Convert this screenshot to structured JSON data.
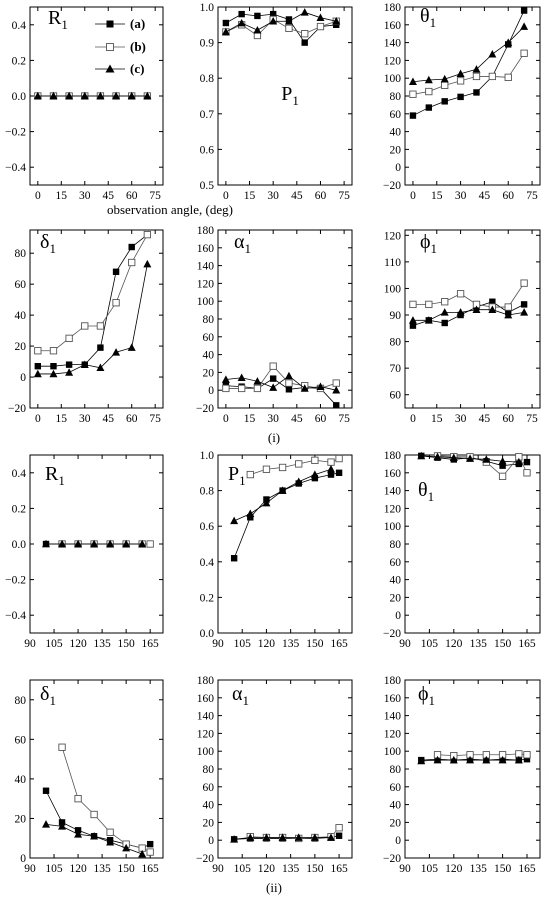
{
  "figure": {
    "xlabel_top": "observation angle, (deg)",
    "caption_i": "(i)",
    "caption_ii": "(ii)",
    "legend": [
      {
        "label": "(a)",
        "marker": "square-filled"
      },
      {
        "label": "(b)",
        "marker": "square-open"
      },
      {
        "label": "(c)",
        "marker": "triangle-filled"
      }
    ]
  },
  "colors": {
    "filled": "#000000",
    "open_fill": "#ffffff",
    "open_stroke": "#555555",
    "line_a": "#000000",
    "line_b": "#555555",
    "line_c": "#000000"
  },
  "chart_data": [
    {
      "type": "line",
      "id": "i-R1",
      "panel_label": {
        "main": "R",
        "sub": "1"
      },
      "xlim": [
        -5,
        80
      ],
      "ylim": [
        -0.5,
        0.5
      ],
      "xticks": [
        0,
        15,
        30,
        45,
        60,
        75
      ],
      "yticks": [
        -0.4,
        -0.2,
        0.0,
        0.2,
        0.4
      ],
      "ytick_labels": [
        "−0.4",
        "−0.2",
        "0.0",
        "0.2",
        "0.4"
      ],
      "x": [
        0,
        10,
        20,
        30,
        40,
        50,
        60,
        70
      ],
      "series": [
        {
          "name": "(a)",
          "values": [
            0,
            0,
            0,
            0,
            0,
            0,
            0,
            0
          ]
        },
        {
          "name": "(b)",
          "values": [
            0,
            0,
            0,
            0,
            0,
            0,
            0,
            0
          ]
        },
        {
          "name": "(c)",
          "values": [
            0,
            0,
            0,
            0,
            0,
            0,
            0,
            0
          ]
        }
      ]
    },
    {
      "type": "line",
      "id": "i-P1",
      "panel_label": {
        "main": "P",
        "sub": "1"
      },
      "xlim": [
        -5,
        80
      ],
      "ylim": [
        0.5,
        1.0
      ],
      "xticks": [
        0,
        15,
        30,
        45,
        60,
        75
      ],
      "yticks": [
        0.5,
        0.6,
        0.7,
        0.8,
        0.9,
        1.0
      ],
      "ytick_labels": [
        "0.5",
        "0.6",
        "0.7",
        "0.8",
        "0.9",
        "1.0"
      ],
      "x": [
        0,
        10,
        20,
        30,
        40,
        50,
        60,
        70
      ],
      "series": [
        {
          "name": "(a)",
          "values": [
            0.955,
            0.98,
            0.975,
            0.98,
            0.965,
            0.9,
            0.945,
            0.95
          ]
        },
        {
          "name": "(b)",
          "values": [
            0.93,
            0.95,
            0.92,
            0.965,
            0.94,
            0.925,
            0.945,
            0.96
          ]
        },
        {
          "name": "(c)",
          "values": [
            0.93,
            0.955,
            0.935,
            0.96,
            0.96,
            0.985,
            0.97,
            0.96
          ]
        }
      ]
    },
    {
      "type": "line",
      "id": "i-theta1",
      "panel_label": {
        "main": "θ",
        "sub": "1"
      },
      "xlim": [
        -5,
        80
      ],
      "ylim": [
        -20,
        180
      ],
      "xticks": [
        0,
        15,
        30,
        45,
        60,
        75
      ],
      "yticks": [
        -20,
        0,
        20,
        40,
        60,
        80,
        100,
        120,
        140,
        160,
        180
      ],
      "ytick_labels": [
        "−20",
        "0",
        "20",
        "40",
        "60",
        "80",
        "100",
        "120",
        "140",
        "160",
        "180"
      ],
      "x": [
        0,
        10,
        20,
        30,
        40,
        50,
        60,
        70
      ],
      "series": [
        {
          "name": "(a)",
          "values": [
            58,
            67,
            74,
            79,
            84,
            102,
            138,
            176
          ]
        },
        {
          "name": "(b)",
          "values": [
            82,
            85,
            92,
            97,
            102,
            102,
            101,
            128
          ]
        },
        {
          "name": "(c)",
          "values": [
            96,
            98,
            99,
            105,
            110,
            127,
            140,
            158
          ]
        }
      ]
    },
    {
      "type": "line",
      "id": "i-delta1",
      "panel_label": {
        "main": "δ",
        "sub": "1"
      },
      "xlim": [
        -5,
        80
      ],
      "ylim": [
        -20,
        95
      ],
      "xticks": [
        0,
        15,
        30,
        45,
        60,
        75
      ],
      "yticks": [
        -20,
        0,
        20,
        40,
        60,
        80
      ],
      "ytick_labels": [
        "−20",
        "0",
        "20",
        "40",
        "60",
        "80"
      ],
      "x": [
        0,
        10,
        20,
        30,
        40,
        50,
        60,
        70
      ],
      "series": [
        {
          "name": "(a)",
          "values": [
            7,
            7,
            8,
            8,
            19,
            68,
            84,
            92
          ]
        },
        {
          "name": "(b)",
          "values": [
            17,
            17,
            25,
            33,
            33,
            48,
            74,
            92
          ]
        },
        {
          "name": "(c)",
          "values": [
            2,
            2,
            3,
            8,
            6,
            16,
            19,
            73
          ]
        }
      ]
    },
    {
      "type": "line",
      "id": "i-alpha1",
      "panel_label": {
        "main": "α",
        "sub": "1"
      },
      "xlim": [
        -5,
        80
      ],
      "ylim": [
        -20,
        180
      ],
      "xticks": [
        0,
        15,
        30,
        45,
        60,
        75
      ],
      "yticks": [
        -20,
        0,
        20,
        40,
        60,
        80,
        100,
        120,
        140,
        160,
        180
      ],
      "ytick_labels": [
        "−20",
        "0",
        "20",
        "40",
        "60",
        "80",
        "100",
        "120",
        "140",
        "160",
        "180"
      ],
      "x": [
        0,
        10,
        20,
        30,
        40,
        50,
        60,
        70
      ],
      "series": [
        {
          "name": "(a)",
          "values": [
            5,
            4,
            2,
            13,
            1,
            3,
            2,
            -17
          ]
        },
        {
          "name": "(b)",
          "values": [
            2,
            2,
            2,
            27,
            8,
            5,
            2,
            8
          ]
        },
        {
          "name": "(c)",
          "values": [
            12,
            14,
            10,
            3,
            16,
            2,
            4,
            0
          ]
        }
      ]
    },
    {
      "type": "line",
      "id": "i-phi1",
      "panel_label": {
        "main": "ϕ",
        "sub": "1"
      },
      "xlim": [
        -5,
        80
      ],
      "ylim": [
        55,
        122
      ],
      "xticks": [
        0,
        15,
        30,
        45,
        60,
        75
      ],
      "yticks": [
        60,
        70,
        80,
        90,
        100,
        110,
        120
      ],
      "ytick_labels": [
        "60",
        "70",
        "80",
        "90",
        "100",
        "110",
        "120"
      ],
      "x": [
        0,
        10,
        20,
        30,
        40,
        50,
        60,
        70
      ],
      "series": [
        {
          "name": "(a)",
          "values": [
            86,
            88,
            87,
            90,
            93,
            95,
            91,
            94
          ]
        },
        {
          "name": "(b)",
          "values": [
            94,
            94,
            95,
            98,
            94,
            93,
            93,
            102
          ]
        },
        {
          "name": "(c)",
          "values": [
            88,
            88,
            91,
            91,
            92,
            92,
            90,
            91
          ]
        }
      ]
    },
    {
      "type": "line",
      "id": "ii-R1",
      "panel_label": {
        "main": "R",
        "sub": "1"
      },
      "xlim": [
        90,
        173
      ],
      "ylim": [
        -0.5,
        0.5
      ],
      "xticks": [
        90,
        105,
        120,
        135,
        150,
        165
      ],
      "yticks": [
        -0.4,
        -0.2,
        0.0,
        0.2,
        0.4
      ],
      "ytick_labels": [
        "−0.4",
        "−0.2",
        "0.0",
        "0.2",
        "0.4"
      ],
      "series": [
        {
          "name": "(a)",
          "x": [
            100,
            110,
            120,
            130,
            140,
            150,
            160,
            165
          ],
          "values": [
            0,
            0,
            0,
            0,
            0,
            0,
            0,
            0
          ]
        },
        {
          "name": "(b)",
          "x": [
            110,
            120,
            130,
            140,
            150,
            160,
            165
          ],
          "values": [
            0,
            0,
            0,
            0,
            0,
            0,
            0
          ]
        },
        {
          "name": "(c)",
          "x": [
            100,
            110,
            120,
            130,
            140,
            150,
            160
          ],
          "values": [
            0,
            0,
            0,
            0,
            0,
            0,
            0
          ]
        }
      ]
    },
    {
      "type": "line",
      "id": "ii-P1",
      "panel_label": {
        "main": "P",
        "sub": "1"
      },
      "xlim": [
        90,
        173
      ],
      "ylim": [
        0.0,
        1.0
      ],
      "xticks": [
        90,
        105,
        120,
        135,
        150,
        165
      ],
      "yticks": [
        0.0,
        0.2,
        0.4,
        0.6,
        0.8,
        1.0
      ],
      "ytick_labels": [
        "0.0",
        "0.2",
        "0.4",
        "0.6",
        "0.8",
        "1.0"
      ],
      "series": [
        {
          "name": "(a)",
          "x": [
            100,
            110,
            120,
            130,
            140,
            150,
            160,
            165
          ],
          "values": [
            0.42,
            0.65,
            0.75,
            0.8,
            0.84,
            0.87,
            0.89,
            0.9
          ]
        },
        {
          "name": "(b)",
          "x": [
            110,
            120,
            130,
            140,
            150,
            160,
            165
          ],
          "values": [
            0.89,
            0.92,
            0.93,
            0.95,
            0.97,
            0.96,
            0.98
          ]
        },
        {
          "name": "(c)",
          "x": [
            100,
            110,
            120,
            130,
            140,
            150,
            160
          ],
          "values": [
            0.63,
            0.67,
            0.73,
            0.8,
            0.85,
            0.89,
            0.92
          ]
        }
      ]
    },
    {
      "type": "line",
      "id": "ii-theta1",
      "panel_label": {
        "main": "θ",
        "sub": "1"
      },
      "xlim": [
        90,
        173
      ],
      "ylim": [
        -20,
        180
      ],
      "xticks": [
        90,
        105,
        120,
        135,
        150,
        165
      ],
      "yticks": [
        -20,
        0,
        20,
        40,
        60,
        80,
        100,
        120,
        140,
        160,
        180
      ],
      "ytick_labels": [
        "−20",
        "0",
        "20",
        "40",
        "60",
        "80",
        "100",
        "120",
        "140",
        "160",
        "180"
      ],
      "series": [
        {
          "name": "(a)",
          "x": [
            100,
            110,
            120,
            130,
            140,
            150,
            160,
            165
          ],
          "values": [
            179,
            177,
            175,
            177,
            173,
            168,
            170,
            172
          ]
        },
        {
          "name": "(b)",
          "x": [
            110,
            120,
            130,
            140,
            150,
            160,
            165
          ],
          "values": [
            179,
            178,
            178,
            172,
            156,
            178,
            160
          ]
        },
        {
          "name": "(c)",
          "x": [
            100,
            110,
            120,
            130,
            140,
            150,
            160
          ],
          "values": [
            179,
            178,
            177,
            176,
            175,
            173,
            172
          ]
        }
      ]
    },
    {
      "type": "line",
      "id": "ii-delta1",
      "panel_label": {
        "main": "δ",
        "sub": "1"
      },
      "xlim": [
        90,
        173
      ],
      "ylim": [
        0,
        90
      ],
      "xticks": [
        90,
        105,
        120,
        135,
        150,
        165
      ],
      "yticks": [
        0,
        20,
        40,
        60,
        80
      ],
      "ytick_labels": [
        "0",
        "20",
        "40",
        "60",
        "80"
      ],
      "series": [
        {
          "name": "(a)",
          "x": [
            100,
            110,
            120,
            130,
            140,
            150,
            160,
            165
          ],
          "values": [
            34,
            18,
            14,
            11,
            9,
            7,
            5,
            7
          ]
        },
        {
          "name": "(b)",
          "x": [
            110,
            120,
            130,
            140,
            150,
            160,
            165
          ],
          "values": [
            56,
            30,
            22,
            13,
            7,
            5,
            3
          ]
        },
        {
          "name": "(c)",
          "x": [
            100,
            110,
            120,
            130,
            140,
            150,
            160
          ],
          "values": [
            17,
            16,
            12,
            11,
            8,
            5,
            2
          ]
        }
      ]
    },
    {
      "type": "line",
      "id": "ii-alpha1",
      "panel_label": {
        "main": "α",
        "sub": "1"
      },
      "xlim": [
        90,
        173
      ],
      "ylim": [
        -20,
        180
      ],
      "xticks": [
        90,
        105,
        120,
        135,
        150,
        165
      ],
      "yticks": [
        -20,
        0,
        20,
        40,
        60,
        80,
        100,
        120,
        140,
        160,
        180
      ],
      "ytick_labels": [
        "−20",
        "0",
        "20",
        "40",
        "60",
        "80",
        "100",
        "120",
        "140",
        "160",
        "180"
      ],
      "series": [
        {
          "name": "(a)",
          "x": [
            100,
            110,
            120,
            130,
            140,
            150,
            160,
            165
          ],
          "values": [
            1,
            2,
            2,
            2,
            2,
            2,
            3,
            5
          ]
        },
        {
          "name": "(b)",
          "x": [
            110,
            120,
            130,
            140,
            150,
            160,
            165
          ],
          "values": [
            4,
            3,
            3,
            2,
            3,
            4,
            14
          ]
        },
        {
          "name": "(c)",
          "x": [
            100,
            110,
            120,
            130,
            140,
            150,
            160
          ],
          "values": [
            1,
            3,
            3,
            3,
            3,
            3,
            3
          ]
        }
      ]
    },
    {
      "type": "line",
      "id": "ii-phi1",
      "panel_label": {
        "main": "ϕ",
        "sub": "1"
      },
      "xlim": [
        90,
        173
      ],
      "ylim": [
        -20,
        180
      ],
      "xticks": [
        90,
        105,
        120,
        135,
        150,
        165
      ],
      "yticks": [
        -20,
        0,
        20,
        40,
        60,
        80,
        100,
        120,
        140,
        160,
        180
      ],
      "ytick_labels": [
        "−20",
        "0",
        "20",
        "40",
        "60",
        "80",
        "100",
        "120",
        "140",
        "160",
        "180"
      ],
      "series": [
        {
          "name": "(a)",
          "x": [
            100,
            110,
            120,
            130,
            140,
            150,
            160,
            165
          ],
          "values": [
            90,
            91,
            90,
            91,
            90,
            91,
            90,
            91
          ]
        },
        {
          "name": "(b)",
          "x": [
            110,
            120,
            130,
            140,
            150,
            160,
            165
          ],
          "values": [
            96,
            95,
            96,
            96,
            96,
            97,
            96
          ]
        },
        {
          "name": "(c)",
          "x": [
            100,
            110,
            120,
            130,
            140,
            150,
            160
          ],
          "values": [
            89,
            90,
            90,
            90,
            90,
            90,
            90
          ]
        }
      ]
    }
  ]
}
